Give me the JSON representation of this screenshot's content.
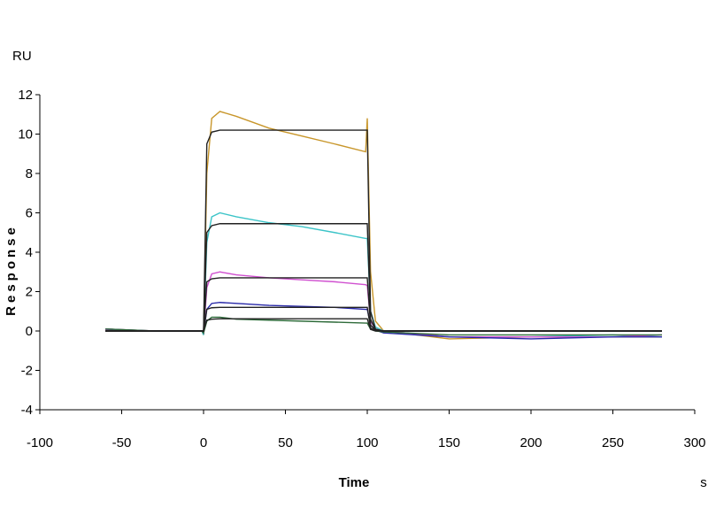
{
  "chart_data": {
    "type": "line",
    "y_unit": "RU",
    "ylabel": "Response",
    "xlabel": "Time",
    "x_unit": "s",
    "x": [
      -60,
      -30,
      -1,
      0,
      2,
      5,
      10,
      20,
      40,
      60,
      80,
      99,
      100,
      102,
      105,
      110,
      150,
      200,
      250,
      280
    ],
    "series": [
      {
        "color": "#c8962a",
        "values": [
          0.1,
          0,
          0,
          -0.2,
          8,
          10.8,
          11.15,
          10.9,
          10.3,
          9.9,
          9.5,
          9.1,
          10.8,
          3,
          0.5,
          0,
          -0.4,
          -0.3,
          -0.3,
          -0.3
        ]
      },
      {
        "color": "#3cc4c8",
        "values": [
          0.05,
          0,
          0,
          -0.2,
          4.5,
          5.8,
          6.0,
          5.8,
          5.5,
          5.3,
          5.0,
          4.7,
          4.7,
          1,
          0.2,
          0,
          -0.3,
          -0.3,
          -0.2,
          -0.3
        ]
      },
      {
        "color": "#d050d0",
        "values": [
          0.05,
          0,
          0,
          -0.1,
          2.2,
          2.9,
          3.0,
          2.85,
          2.7,
          2.6,
          2.5,
          2.35,
          2.3,
          0.5,
          0.1,
          0,
          -0.3,
          -0.3,
          -0.3,
          -0.2
        ]
      },
      {
        "color": "#2828a8",
        "values": [
          0.1,
          0,
          0,
          -0.1,
          1.1,
          1.4,
          1.45,
          1.4,
          1.3,
          1.25,
          1.2,
          1.1,
          1.1,
          0.3,
          0.05,
          -0.1,
          -0.3,
          -0.4,
          -0.3,
          -0.3
        ]
      },
      {
        "color": "#2e6b3a",
        "values": [
          0.1,
          0,
          0,
          -0.1,
          0.5,
          0.7,
          0.7,
          0.6,
          0.55,
          0.5,
          0.45,
          0.4,
          0.4,
          0.1,
          0,
          -0.05,
          -0.2,
          -0.2,
          -0.2,
          -0.2
        ]
      },
      {
        "color": "#222222",
        "values": [
          0,
          0,
          0,
          0,
          9.5,
          10.1,
          10.2,
          10.2,
          10.2,
          10.2,
          10.2,
          10.2,
          10.2,
          1,
          0.1,
          0,
          0,
          0,
          0,
          0
        ]
      },
      {
        "color": "#222222",
        "values": [
          0,
          0,
          0,
          0,
          5,
          5.35,
          5.45,
          5.45,
          5.45,
          5.45,
          5.45,
          5.45,
          5.45,
          0.6,
          0.05,
          0,
          0,
          0,
          0,
          0
        ]
      },
      {
        "color": "#222222",
        "values": [
          0,
          0,
          0,
          0,
          2.5,
          2.65,
          2.7,
          2.7,
          2.7,
          2.7,
          2.7,
          2.7,
          2.7,
          0.3,
          0.03,
          0,
          0,
          0,
          0,
          0
        ]
      },
      {
        "color": "#222222",
        "values": [
          0,
          0,
          0,
          0,
          1.1,
          1.18,
          1.2,
          1.2,
          1.2,
          1.2,
          1.2,
          1.2,
          1.2,
          0.15,
          0.02,
          0,
          0,
          0,
          0,
          0
        ]
      },
      {
        "color": "#222222",
        "values": [
          0,
          0,
          0,
          0,
          0.55,
          0.6,
          0.62,
          0.62,
          0.62,
          0.62,
          0.62,
          0.62,
          0.62,
          0.08,
          0,
          0,
          0,
          0,
          0,
          0
        ]
      }
    ],
    "xlim": [
      -100,
      300
    ],
    "xticks": [
      -100,
      -50,
      0,
      50,
      100,
      150,
      200,
      250,
      300
    ],
    "ylim": [
      -4,
      12
    ],
    "yticks": [
      -4,
      -2,
      0,
      2,
      4,
      6,
      8,
      10,
      12
    ]
  }
}
